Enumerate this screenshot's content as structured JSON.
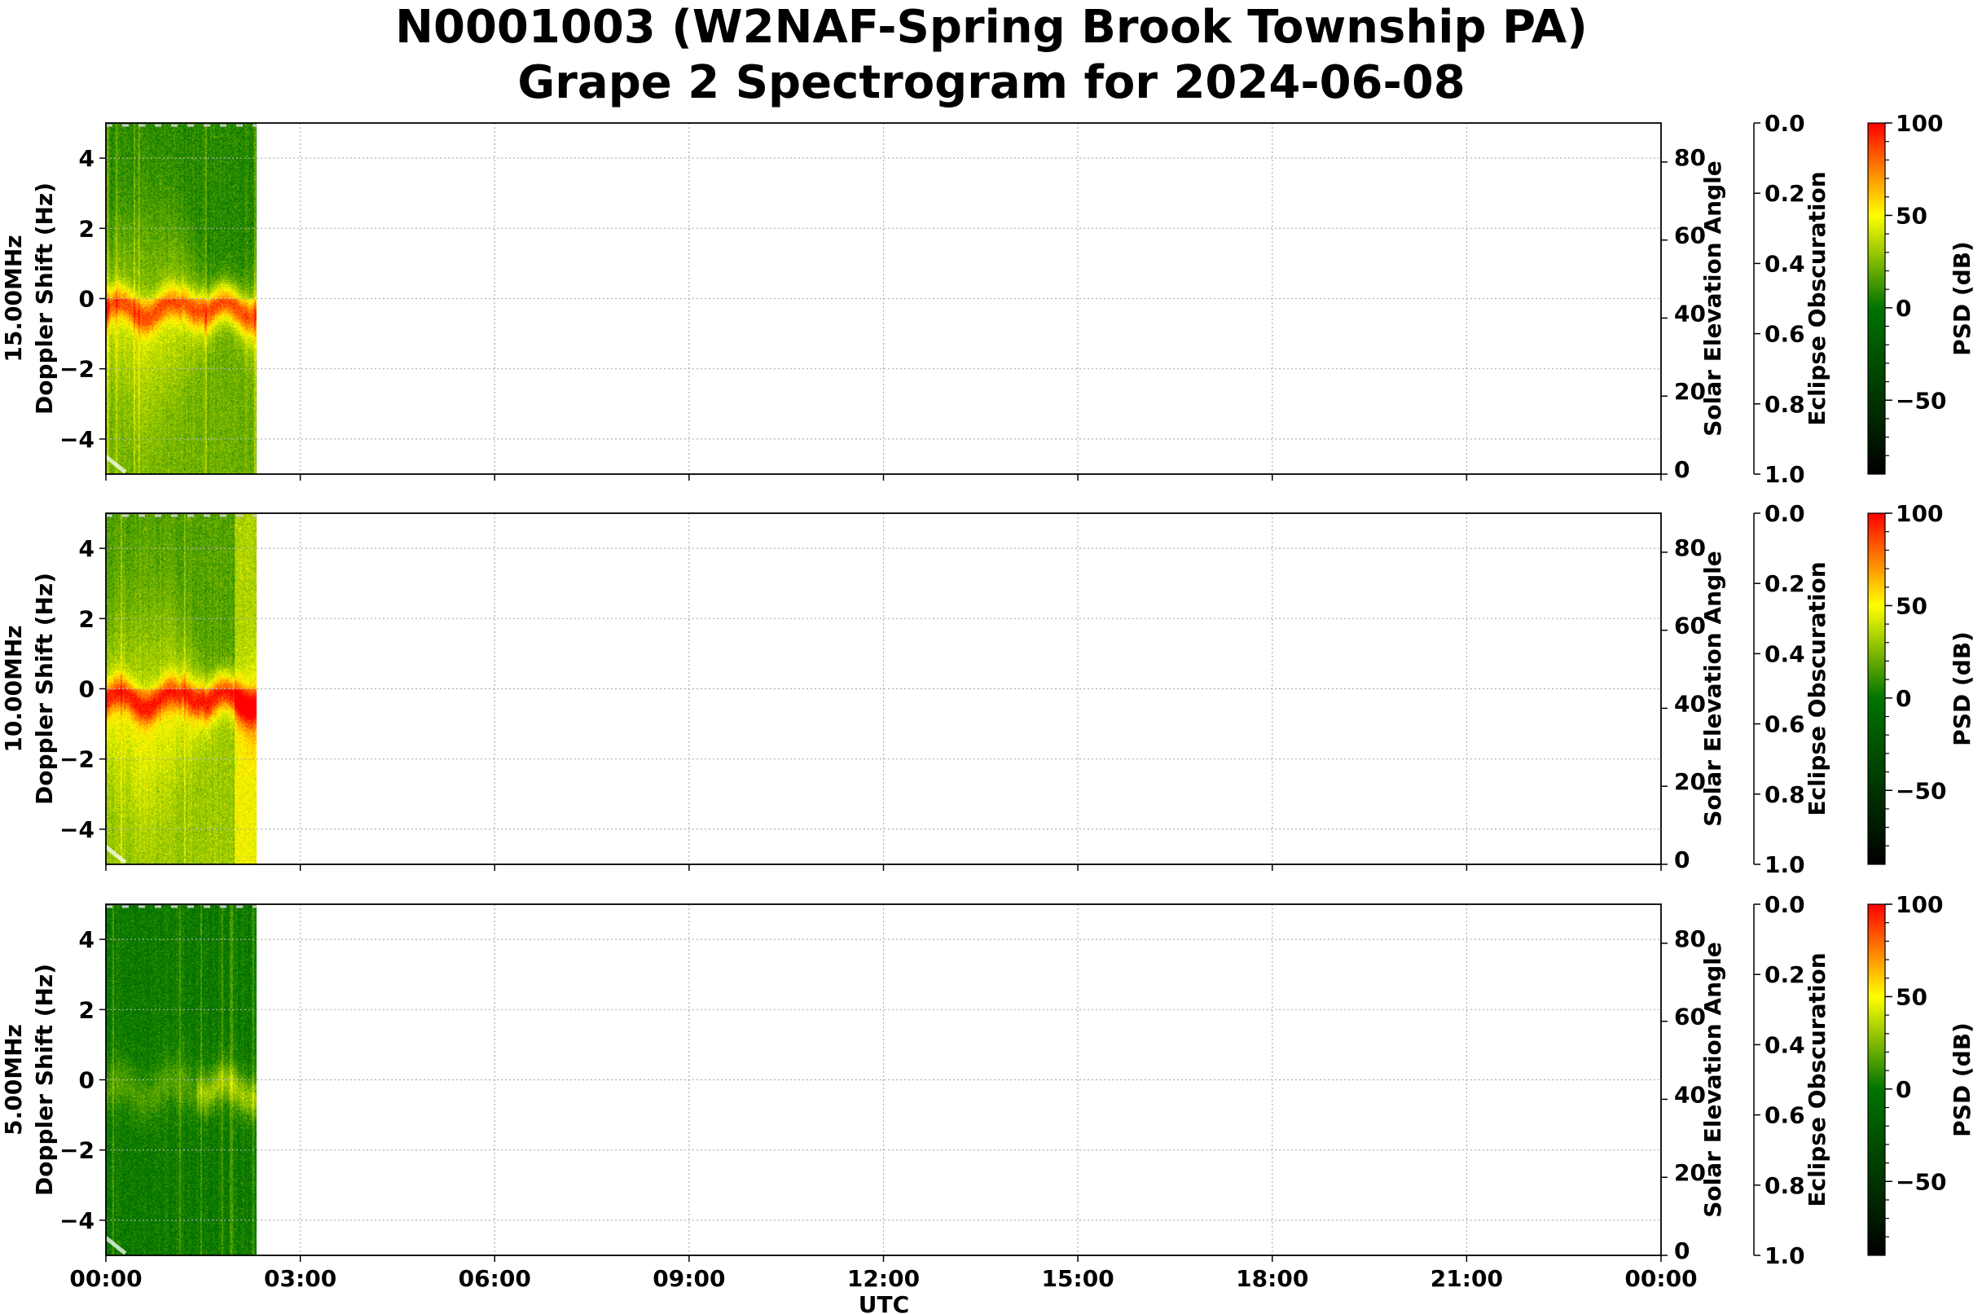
{
  "title": {
    "line1": "N0001003 (W2NAF-Spring Brook Township PA)",
    "line2": "Grape 2 Spectrogram for 2024-06-08"
  },
  "chart_data": {
    "type": "heatmap",
    "title": "N0001003 (W2NAF-Spring Brook Township PA) Grape 2 Spectrogram for 2024-06-08",
    "xlabel": "UTC",
    "x_ticks": [
      "00:00",
      "03:00",
      "06:00",
      "09:00",
      "12:00",
      "15:00",
      "18:00",
      "21:00",
      "00:00"
    ],
    "xlim_hours": [
      0,
      24
    ],
    "data_coverage_hours": [
      0,
      2.33
    ],
    "ylabel": "Doppler Shift (Hz)",
    "ylim": [
      -5,
      5
    ],
    "y_ticks": [
      "−4",
      "−2",
      "0",
      "2",
      "4"
    ],
    "y_tick_values": [
      -4,
      -2,
      0,
      2,
      4
    ],
    "right_axis_1": {
      "label": "Solar Elevation Angle",
      "lim": [
        0,
        90
      ],
      "ticks": [
        "0",
        "20",
        "40",
        "60",
        "80"
      ],
      "tick_values": [
        0,
        20,
        40,
        60,
        80
      ]
    },
    "right_axis_2": {
      "label": "Eclipse Obscuration",
      "lim": [
        1.0,
        0.0
      ],
      "ticks": [
        "0.0",
        "0.2",
        "0.4",
        "0.6",
        "0.8",
        "1.0"
      ],
      "tick_values": [
        0,
        0.2,
        0.4,
        0.6,
        0.8,
        1.0
      ]
    },
    "colorbar": {
      "label": "PSD (dB)",
      "lim": [
        -90,
        100
      ],
      "ticks": [
        "−50",
        "0",
        "50",
        "100"
      ],
      "tick_values": [
        -50,
        0,
        50,
        100
      ],
      "colormap": [
        [
          "-90",
          "#000000"
        ],
        [
          "0",
          "#007400"
        ],
        [
          "50",
          "#ffff00"
        ],
        [
          "100",
          "#ff0000"
        ]
      ]
    },
    "grid": true,
    "panels": [
      {
        "frequency": "15.00MHz",
        "doppler_peak_level_db": 60
      },
      {
        "frequency": "10.00MHz",
        "doppler_peak_level_db": 65
      },
      {
        "frequency": "5.00MHz",
        "doppler_peak_level_db": 25
      }
    ],
    "solar_elevation_curve": {
      "color": "#ffffff",
      "points_hours_deg": [
        [
          0,
          4.5
        ],
        [
          0.3,
          0.5
        ]
      ]
    },
    "eclipse_obscuration_curve": {
      "color": "#cccccc",
      "points_hours_value": [
        [
          0,
          0
        ],
        [
          2.33,
          0
        ]
      ]
    }
  }
}
